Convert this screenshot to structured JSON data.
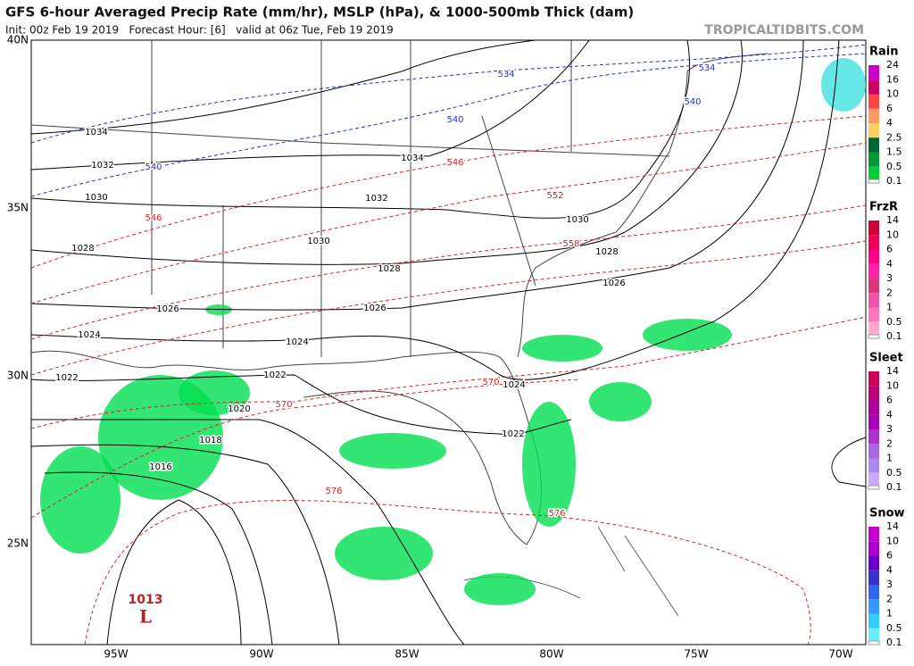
{
  "header": {
    "title": "GFS 6-hour Averaged Precip Rate (mm/hr), MSLP (hPa), & 1000-500mb Thick (dam)",
    "subtitle": "Init: 00z Feb 19 2019   Forecast Hour: [6]   valid at 06z Tue, Feb 19 2019",
    "watermark": "TROPICALTIDBITS.COM"
  },
  "map": {
    "lat_labels": [
      "40N",
      "35N",
      "30N",
      "25N"
    ],
    "lon_labels": [
      "95W",
      "90W",
      "85W",
      "80W",
      "75W",
      "70W"
    ],
    "isobar_labels": [
      "1034",
      "1032",
      "1030",
      "1028",
      "1026",
      "1024",
      "1022",
      "1034",
      "1032",
      "1030",
      "1028",
      "1026",
      "1024",
      "1022",
      "1020",
      "1018",
      "1016",
      "1030",
      "1028",
      "1026",
      "1024",
      "1022"
    ],
    "thickness_labels": [
      "534",
      "534",
      "540",
      "540",
      "540",
      "546",
      "546",
      "552",
      "558",
      "570",
      "570",
      "576",
      "576"
    ],
    "low": {
      "pressure": "1013",
      "symbol": "L"
    }
  },
  "legend": [
    {
      "title": "Rain",
      "values": [
        24,
        16,
        10,
        6,
        4,
        2.5,
        1.5,
        0.5,
        0.1
      ]
    },
    {
      "title": "FrzR",
      "values": [
        14,
        10,
        6,
        4,
        3,
        2,
        1,
        0.5,
        0.1
      ]
    },
    {
      "title": "Sleet",
      "values": [
        14,
        10,
        6,
        4,
        3,
        2,
        1,
        0.5,
        0.1
      ]
    },
    {
      "title": "Snow",
      "values": [
        14,
        10,
        6,
        4,
        3,
        2,
        1,
        0.5,
        0.1
      ]
    }
  ]
}
